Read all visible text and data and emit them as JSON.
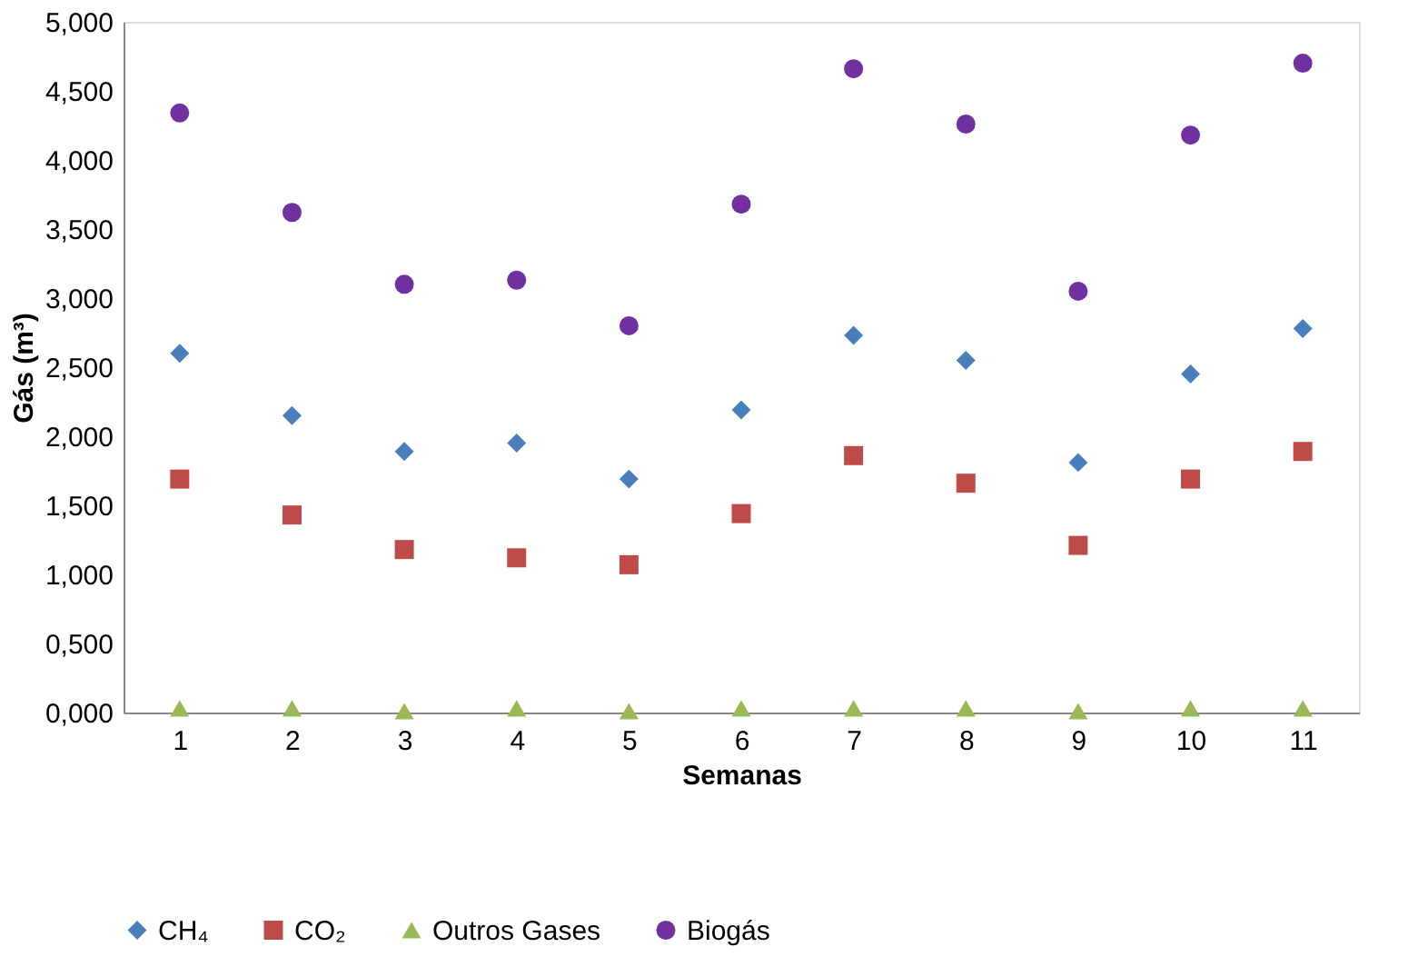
{
  "chart_data": {
    "type": "scatter",
    "xlabel": "Semanas",
    "ylabel": "Gás (m³)",
    "categories": [
      "1",
      "2",
      "3",
      "4",
      "5",
      "6",
      "7",
      "8",
      "9",
      "10",
      "11"
    ],
    "series": [
      {
        "name": "CH₄",
        "color": "#4a7ebb",
        "marker": "diamond",
        "values": [
          2.6,
          2.15,
          1.89,
          1.95,
          1.69,
          2.19,
          2.73,
          2.55,
          1.81,
          2.45,
          2.78
        ]
      },
      {
        "name": "CO₂",
        "color": "#be4b48",
        "marker": "square",
        "values": [
          1.69,
          1.43,
          1.18,
          1.12,
          1.07,
          1.44,
          1.86,
          1.66,
          1.21,
          1.69,
          1.89
        ]
      },
      {
        "name": "Outros Gases",
        "color": "#98b954",
        "marker": "triangle",
        "values": [
          0.03,
          0.03,
          0.01,
          0.03,
          0.01,
          0.03,
          0.03,
          0.03,
          0.01,
          0.03,
          0.03
        ]
      },
      {
        "name": "Biogás",
        "color": "#7030a0",
        "marker": "circle",
        "values": [
          4.34,
          3.62,
          3.1,
          3.13,
          2.8,
          3.68,
          4.66,
          4.26,
          3.05,
          4.18,
          4.7
        ]
      }
    ],
    "ylim": [
      0,
      5
    ],
    "yticks": [
      {
        "value": 0,
        "label": "0,000"
      },
      {
        "value": 0.5,
        "label": "0,500"
      },
      {
        "value": 1,
        "label": "1,000"
      },
      {
        "value": 1.5,
        "label": "1,500"
      },
      {
        "value": 2,
        "label": "2,000"
      },
      {
        "value": 2.5,
        "label": "2,500"
      },
      {
        "value": 3,
        "label": "3,000"
      },
      {
        "value": 3.5,
        "label": "3,500"
      },
      {
        "value": 4,
        "label": "4,000"
      },
      {
        "value": 4.5,
        "label": "4,500"
      },
      {
        "value": 5,
        "label": "5,000"
      }
    ],
    "grid": false,
    "legend": "bottom"
  }
}
